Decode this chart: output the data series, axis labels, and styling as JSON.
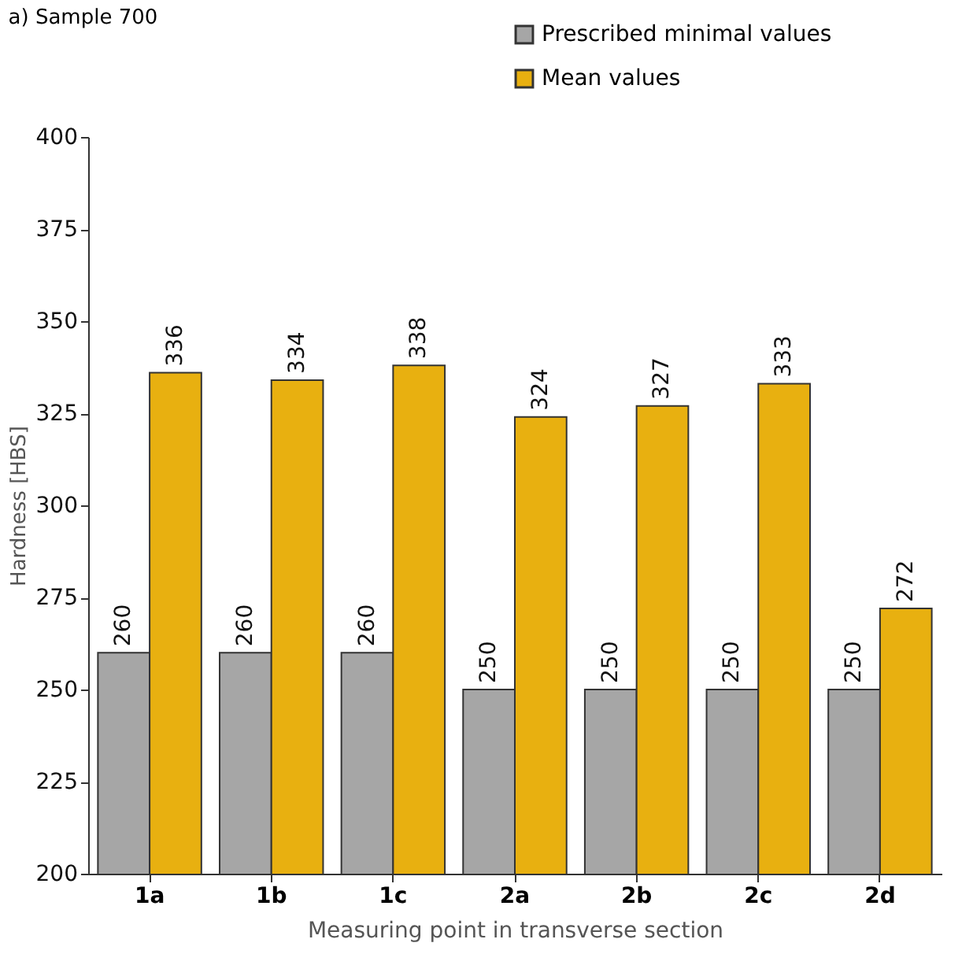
{
  "chart_data": {
    "type": "bar",
    "title": "a) Sample 700",
    "xlabel": "Measuring point in transverse section",
    "ylabel": "Hardness [HBS]",
    "categories": [
      "1a",
      "1b",
      "1c",
      "2a",
      "2b",
      "2c",
      "2d"
    ],
    "series": [
      {
        "name": "Prescribed minimal values",
        "color": "#a6a6a6",
        "values": [
          260,
          260,
          260,
          250,
          250,
          250,
          250
        ]
      },
      {
        "name": "Mean values",
        "color": "#e8b010",
        "values": [
          336,
          334,
          338,
          324,
          327,
          333,
          272
        ]
      }
    ],
    "ylim": [
      200,
      400
    ],
    "yticks": [
      200,
      225,
      250,
      275,
      300,
      325,
      350,
      375,
      400
    ],
    "data_labels": true,
    "legend": "top right",
    "grid": false
  }
}
